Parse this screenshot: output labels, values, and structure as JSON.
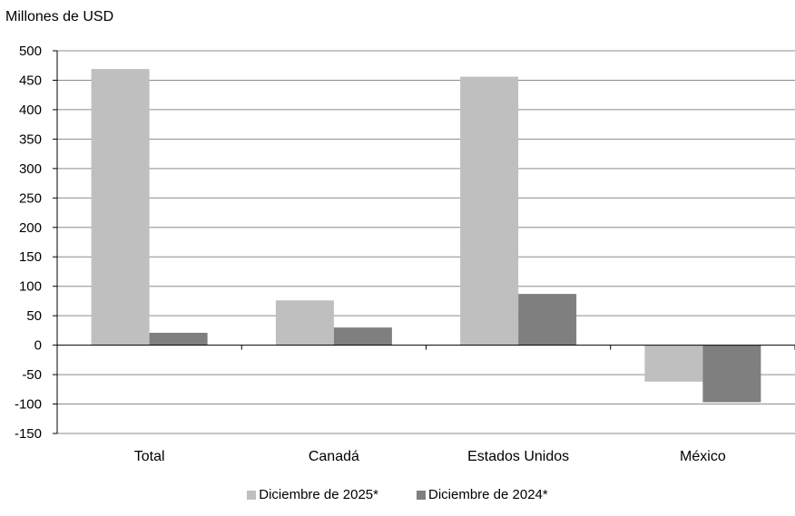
{
  "chart_data": {
    "type": "bar",
    "unit_label": "Millones de USD",
    "categories": [
      "Total",
      "Canadá",
      "Estados Unidos",
      "México"
    ],
    "series": [
      {
        "name": "Diciembre de 2025*",
        "color": "#bfbfbf",
        "values": [
          469,
          76,
          456,
          -62
        ]
      },
      {
        "name": "Diciembre de 2024*",
        "color": "#7f7f7f",
        "values": [
          21,
          30,
          87,
          -97
        ]
      }
    ],
    "ylim": [
      -150,
      500
    ],
    "yticks": [
      500,
      450,
      400,
      350,
      300,
      250,
      200,
      150,
      100,
      50,
      0,
      -50,
      -100,
      -150
    ],
    "grid": true,
    "legend_position": "bottom-center"
  }
}
